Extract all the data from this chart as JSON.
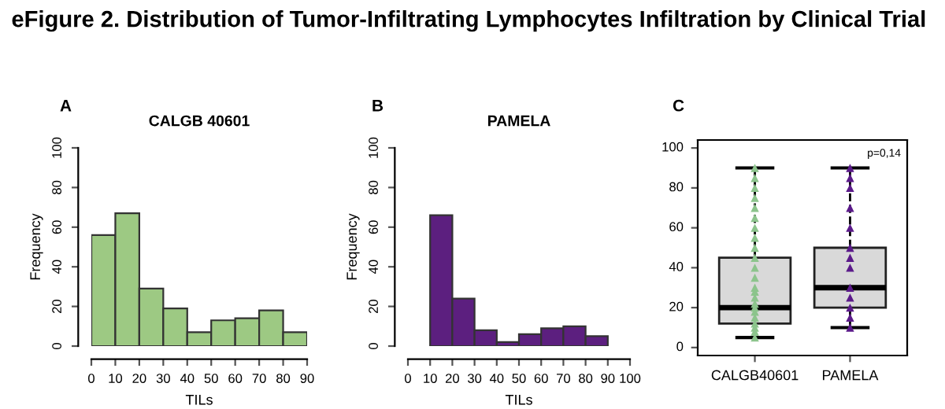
{
  "chart_data": [
    {
      "type": "histogram",
      "title": "CALGB 40601",
      "xlabel": "TILs",
      "ylabel": "Frequency",
      "annotations": [
        "eFigure 2. Distribution of Tumor-Infiltrating Lymphocytes Infiltration by Clinical Trial",
        "A"
      ],
      "bins": [
        0,
        10,
        20,
        30,
        40,
        50,
        60,
        70,
        80,
        90
      ],
      "values": [
        56,
        67,
        29,
        19,
        7,
        13,
        14,
        18,
        7
      ],
      "color": "#9dc983",
      "xlim": [
        0,
        90
      ],
      "xticks": [
        0,
        10,
        20,
        30,
        40,
        50,
        60,
        70,
        80,
        90
      ],
      "ylim": [
        0,
        100
      ],
      "yticks": [
        0,
        20,
        40,
        60,
        80,
        100
      ],
      "grid": false
    },
    {
      "type": "histogram",
      "title": "PAMELA",
      "xlabel": "TILs",
      "ylabel": "Frequency",
      "annotations": [
        "B"
      ],
      "bins": [
        10,
        20,
        30,
        40,
        50,
        60,
        70,
        80,
        90
      ],
      "values": [
        66,
        24,
        8,
        2,
        6,
        9,
        10,
        5
      ],
      "color": "#5c1f7f",
      "xlim": [
        0,
        100
      ],
      "xticks": [
        0,
        10,
        20,
        30,
        40,
        50,
        60,
        70,
        80,
        90,
        100
      ],
      "ylim": [
        0,
        100
      ],
      "yticks": [
        0,
        20,
        40,
        60,
        80,
        100
      ],
      "grid": false
    },
    {
      "type": "box",
      "categories": [
        "CALGB40601",
        "PAMELA"
      ],
      "annotations": [
        "C",
        "p=0,14"
      ],
      "boxes": [
        {
          "low": 5,
          "q1": 12,
          "median": 20,
          "q3": 45,
          "high": 90
        },
        {
          "low": 10,
          "q1": 20,
          "median": 30,
          "q3": 50,
          "high": 90
        }
      ],
      "series": [
        {
          "type": "scatter",
          "color": "#8cc48c",
          "x": [
            "CALGB40601",
            "CALGB40601",
            "CALGB40601",
            "CALGB40601",
            "CALGB40601",
            "CALGB40601",
            "CALGB40601",
            "CALGB40601",
            "CALGB40601",
            "CALGB40601",
            "CALGB40601",
            "CALGB40601",
            "CALGB40601",
            "CALGB40601",
            "CALGB40601",
            "CALGB40601",
            "CALGB40601",
            "CALGB40601",
            "CALGB40601",
            "CALGB40601",
            "CALGB40601",
            "CALGB40601",
            "CALGB40601"
          ],
          "values": [
            5,
            8,
            10,
            12,
            15,
            18,
            20,
            22,
            25,
            28,
            30,
            35,
            40,
            45,
            50,
            55,
            60,
            65,
            70,
            75,
            80,
            85,
            90
          ]
        },
        {
          "type": "scatter",
          "color": "#5b1a8a",
          "x": [
            "PAMELA",
            "PAMELA",
            "PAMELA",
            "PAMELA",
            "PAMELA",
            "PAMELA",
            "PAMELA",
            "PAMELA",
            "PAMELA",
            "PAMELA",
            "PAMELA",
            "PAMELA",
            "PAMELA"
          ],
          "values": [
            10,
            15,
            20,
            25,
            30,
            40,
            45,
            50,
            60,
            70,
            80,
            85,
            90
          ]
        }
      ],
      "marker": "triangle",
      "ylim": [
        -4,
        104
      ],
      "yticks": [
        0,
        20,
        40,
        60,
        80,
        100
      ],
      "grid": false
    }
  ]
}
